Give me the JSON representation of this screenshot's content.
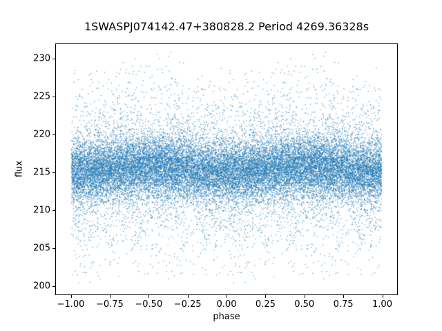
{
  "chart_data": {
    "type": "scatter",
    "title": "1SWASPJ074142.47+380828.2 Period 4269.36328s",
    "xlabel": "phase",
    "ylabel": "flux",
    "xlim": [
      -1.1,
      1.1
    ],
    "ylim": [
      198.8,
      232.0
    ],
    "grid": false,
    "legend": null,
    "x_ticks": [
      {
        "value": -1.0,
        "label": "−1.00"
      },
      {
        "value": -0.75,
        "label": "−0.75"
      },
      {
        "value": -0.5,
        "label": "−0.50"
      },
      {
        "value": -0.25,
        "label": "−0.25"
      },
      {
        "value": 0.0,
        "label": "0.00"
      },
      {
        "value": 0.25,
        "label": "0.25"
      },
      {
        "value": 0.5,
        "label": "0.50"
      },
      {
        "value": 0.75,
        "label": "0.75"
      },
      {
        "value": 1.0,
        "label": "1.00"
      }
    ],
    "y_ticks": [
      {
        "value": 200,
        "label": "200"
      },
      {
        "value": 205,
        "label": "205"
      },
      {
        "value": 210,
        "label": "210"
      },
      {
        "value": 215,
        "label": "215"
      },
      {
        "value": 220,
        "label": "220"
      },
      {
        "value": 225,
        "label": "225"
      },
      {
        "value": 230,
        "label": "230"
      }
    ],
    "marker_color": "#1f77b4",
    "marker_alpha": 0.7,
    "marker_size_px": 1.3,
    "n_points": 26000,
    "distribution": {
      "note": "phase folded light curve: each epoch drawn at phase p in [0,1) and at p-1",
      "x_range": [
        -1.0,
        1.0
      ],
      "flux_mean": 215.4,
      "flux_sinusoid_amplitude": 0.4,
      "flux_noise_components": [
        {
          "weight": 0.75,
          "sigma": 2.0
        },
        {
          "weight": 0.25,
          "sigma": 5.8
        }
      ],
      "flux_clip": [
        200.3,
        231.0
      ],
      "seed": 42
    }
  }
}
